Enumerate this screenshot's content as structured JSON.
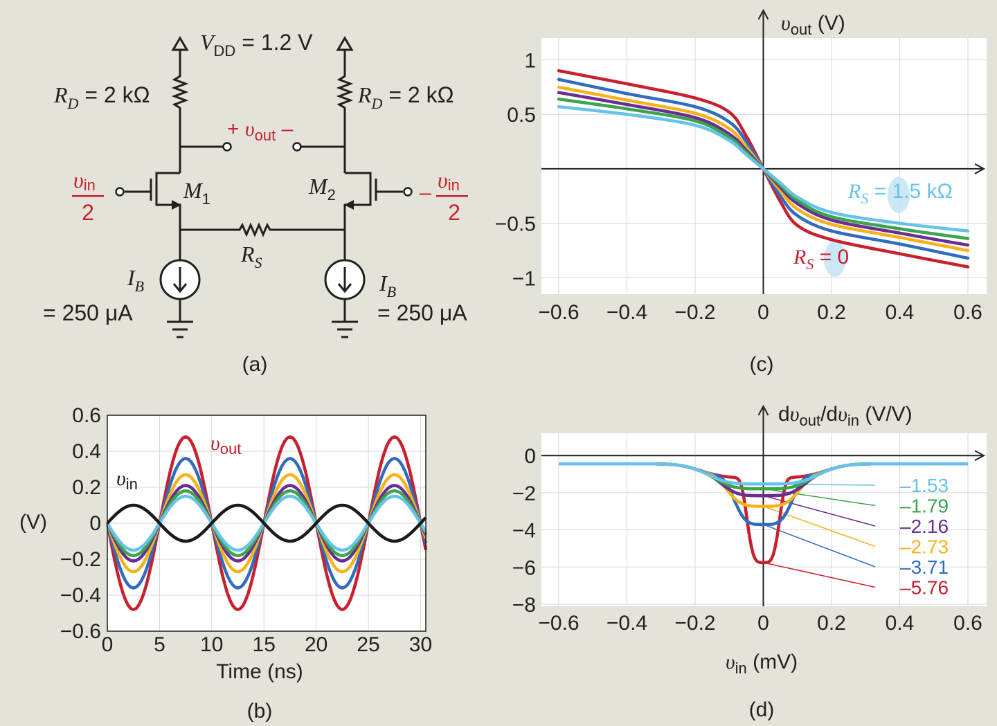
{
  "colors": {
    "background": "#e4e3d9",
    "red": "#c8202e",
    "blue": "#2f6cc0",
    "orange": "#f7b21b",
    "purple": "#6b2d91",
    "green": "#3aa54a",
    "cyan": "#67c2ea",
    "black": "#1a1a1a"
  },
  "panel_labels": {
    "a": "(a)",
    "b": "(b)",
    "c": "(c)",
    "d": "(d)"
  },
  "circuit": {
    "vdd": {
      "name": "V",
      "sub": "DD",
      "value": " = 1.2 V"
    },
    "rd_left": {
      "name": "R",
      "sub": "D",
      "value": " = 2 kΩ"
    },
    "rd_right": {
      "name": "R",
      "sub": "D",
      "value": " = 2 kΩ"
    },
    "vout": {
      "plus": "+ ",
      "sym": "υ",
      "sub": "out",
      "minus": " –"
    },
    "m1": {
      "name": "M",
      "sub": "1"
    },
    "m2": {
      "name": "M",
      "sub": "2"
    },
    "vin_left": {
      "sym": "υ",
      "sub": "in",
      "den": "2"
    },
    "vin_right": {
      "sign": "–",
      "sym": "υ",
      "sub": "in",
      "den": "2"
    },
    "rs": {
      "name": "R",
      "sub": "S"
    },
    "ib_left": {
      "name": "I",
      "sub": "B",
      "value": "= 250 μA"
    },
    "ib_right": {
      "name": "I",
      "sub": "B",
      "value": "= 250 μA"
    }
  },
  "chart_data": [
    {
      "id": "b",
      "type": "line",
      "xlabel": "Time (ns)",
      "ylabel": "(V)",
      "xlim": [
        0,
        30.5
      ],
      "ylim": [
        -0.6,
        0.6
      ],
      "xticks": [
        0,
        5,
        10,
        15,
        20,
        25,
        30
      ],
      "yticks": [
        -0.6,
        -0.4,
        -0.2,
        0,
        0.2,
        0.4,
        0.6
      ],
      "ytick_labels": [
        "−0.6",
        "−0.4",
        "−0.2",
        "0",
        "0.2",
        "0.4",
        "0.6"
      ],
      "grid": true,
      "annotations": [
        {
          "sym": "υ",
          "sub": "out",
          "color": "#c8202e"
        },
        {
          "sym": "υ",
          "sub": "in",
          "color": "#1a1a1a"
        }
      ],
      "period_ns": 10,
      "series": [
        {
          "color": "#c8202e",
          "amplitude": -0.48
        },
        {
          "color": "#2f6cc0",
          "amplitude": -0.36
        },
        {
          "color": "#f7b21b",
          "amplitude": -0.27
        },
        {
          "color": "#6b2d91",
          "amplitude": -0.21
        },
        {
          "color": "#3aa54a",
          "amplitude": -0.18
        },
        {
          "color": "#67c2ea",
          "amplitude": -0.15
        },
        {
          "color": "#1a1a1a",
          "amplitude": 0.1
        }
      ]
    },
    {
      "id": "c",
      "type": "line",
      "xlim": [
        -0.6,
        0.6
      ],
      "ylim": [
        -1.15,
        1.2
      ],
      "xticks": [
        -0.6,
        -0.4,
        -0.2,
        0,
        0.2,
        0.4,
        0.6
      ],
      "xtick_labels": [
        "−0.6",
        "−0.4",
        "−0.2",
        "0",
        "0.2",
        "0.4",
        "0.6"
      ],
      "yticks": [
        1,
        0.5,
        -0.5,
        -1
      ],
      "ytick_labels": [
        "1",
        "0.5",
        "−0.5",
        "−1"
      ],
      "ylabel": {
        "sym": "υ",
        "sub": "out",
        "unit": " (V)"
      },
      "grid": true,
      "annotations": [
        {
          "name": "R",
          "sub": "S",
          "value": " = 1.5 kΩ",
          "color": "#67c2ea"
        },
        {
          "name": "R",
          "sub": "S",
          "value": " = 0",
          "color": "#c8202e"
        }
      ],
      "series": [
        {
          "color": "#c8202e",
          "points": [
            [
              -0.6,
              0.9
            ],
            [
              -0.4,
              0.78
            ],
            [
              -0.2,
              0.65
            ],
            [
              -0.1,
              0.52
            ],
            [
              -0.05,
              0.3
            ],
            [
              0,
              0
            ],
            [
              0.05,
              -0.3
            ],
            [
              0.1,
              -0.52
            ],
            [
              0.2,
              -0.65
            ],
            [
              0.4,
              -0.78
            ],
            [
              0.6,
              -0.9
            ]
          ]
        },
        {
          "color": "#2f6cc0",
          "points": [
            [
              -0.6,
              0.82
            ],
            [
              -0.4,
              0.69
            ],
            [
              -0.2,
              0.57
            ],
            [
              -0.1,
              0.43
            ],
            [
              -0.05,
              0.25
            ],
            [
              0,
              0
            ],
            [
              0.05,
              -0.25
            ],
            [
              0.1,
              -0.43
            ],
            [
              0.2,
              -0.57
            ],
            [
              0.4,
              -0.69
            ],
            [
              0.6,
              -0.82
            ]
          ]
        },
        {
          "color": "#f7b21b",
          "points": [
            [
              -0.6,
              0.75
            ],
            [
              -0.4,
              0.63
            ],
            [
              -0.2,
              0.51
            ],
            [
              -0.1,
              0.37
            ],
            [
              -0.05,
              0.2
            ],
            [
              0,
              0
            ],
            [
              0.05,
              -0.2
            ],
            [
              0.1,
              -0.37
            ],
            [
              0.2,
              -0.51
            ],
            [
              0.4,
              -0.63
            ],
            [
              0.6,
              -0.75
            ]
          ]
        },
        {
          "color": "#6b2d91",
          "points": [
            [
              -0.6,
              0.7
            ],
            [
              -0.4,
              0.59
            ],
            [
              -0.2,
              0.47
            ],
            [
              -0.1,
              0.32
            ],
            [
              -0.05,
              0.17
            ],
            [
              0,
              0
            ],
            [
              0.05,
              -0.17
            ],
            [
              0.1,
              -0.32
            ],
            [
              0.2,
              -0.47
            ],
            [
              0.4,
              -0.59
            ],
            [
              0.6,
              -0.7
            ]
          ]
        },
        {
          "color": "#3aa54a",
          "points": [
            [
              -0.6,
              0.64
            ],
            [
              -0.4,
              0.55
            ],
            [
              -0.2,
              0.44
            ],
            [
              -0.1,
              0.29
            ],
            [
              -0.05,
              0.15
            ],
            [
              0,
              0
            ],
            [
              0.05,
              -0.15
            ],
            [
              0.1,
              -0.29
            ],
            [
              0.2,
              -0.44
            ],
            [
              0.4,
              -0.55
            ],
            [
              0.6,
              -0.64
            ]
          ]
        },
        {
          "color": "#67c2ea",
          "points": [
            [
              -0.6,
              0.57
            ],
            [
              -0.4,
              0.5
            ],
            [
              -0.2,
              0.4
            ],
            [
              -0.1,
              0.26
            ],
            [
              -0.05,
              0.13
            ],
            [
              0,
              0
            ],
            [
              0.05,
              -0.13
            ],
            [
              0.1,
              -0.26
            ],
            [
              0.2,
              -0.4
            ],
            [
              0.4,
              -0.5
            ],
            [
              0.6,
              -0.57
            ]
          ]
        }
      ]
    },
    {
      "id": "d",
      "type": "line",
      "xlabel": {
        "sym": "υ",
        "sub": "in",
        "unit": " (mV)"
      },
      "ylabel": {
        "pre": "d",
        "sym": "υ",
        "sub": "out",
        "mid": "/d",
        "sym2": "υ",
        "sub2": "in",
        "unit": " (V/V)"
      },
      "xlim": [
        -0.6,
        0.6
      ],
      "ylim": [
        -8,
        1.2
      ],
      "xticks": [
        -0.6,
        -0.4,
        -0.2,
        0,
        0.2,
        0.4,
        0.6
      ],
      "xtick_labels": [
        "−0.6",
        "−0.4",
        "−0.2",
        "0",
        "0.2",
        "0.4",
        "0.6"
      ],
      "yticks": [
        0,
        -2,
        -4,
        -6,
        -8
      ],
      "ytick_labels": [
        "0",
        "−2",
        "−4",
        "−6",
        "−8"
      ],
      "grid": true,
      "series": [
        {
          "color": "#c8202e",
          "label": "–5.76",
          "peak": -5.76,
          "width": 0.052,
          "power": 4
        },
        {
          "color": "#2f6cc0",
          "label": "–3.71",
          "peak": -3.71,
          "width": 0.092,
          "power": 4
        },
        {
          "color": "#f7b21b",
          "label": "–2.73",
          "peak": -2.73,
          "width": 0.112,
          "power": 4
        },
        {
          "color": "#6b2d91",
          "label": "–2.16",
          "peak": -2.16,
          "width": 0.125,
          "power": 4
        },
        {
          "color": "#3aa54a",
          "label": "–1.79",
          "peak": -1.79,
          "width": 0.132,
          "power": 4
        },
        {
          "color": "#67c2ea",
          "label": "–1.53",
          "peak": -1.53,
          "width": 0.138,
          "power": 4
        }
      ],
      "label_order": [
        "–1.53",
        "–1.79",
        "–2.16",
        "–2.73",
        "–3.71",
        "–5.76"
      ]
    }
  ]
}
